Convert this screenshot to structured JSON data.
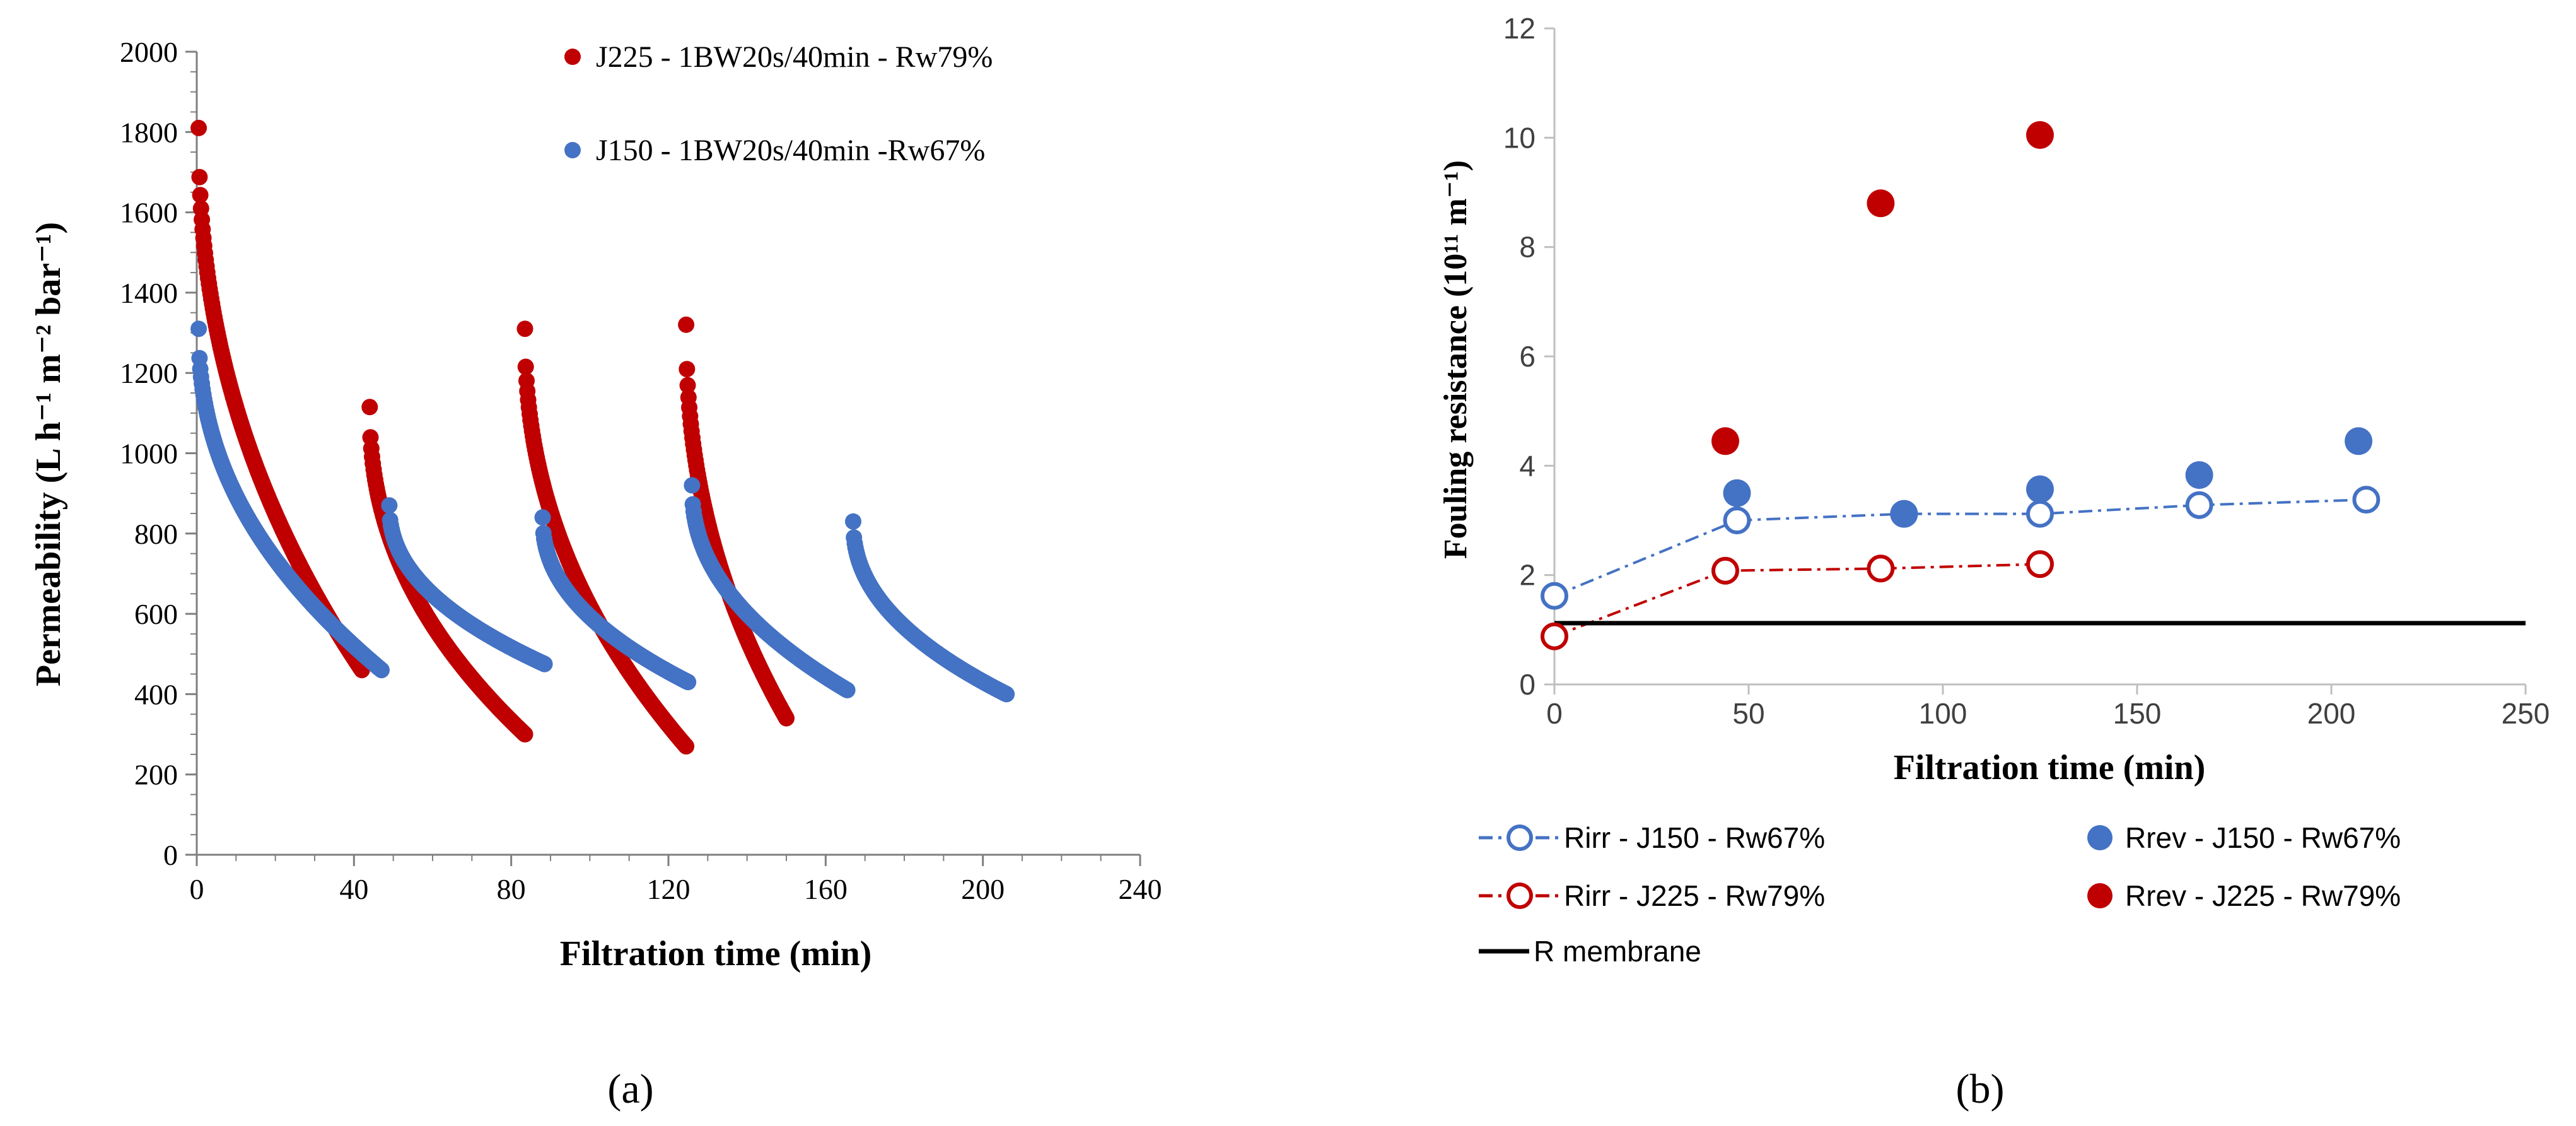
{
  "chart_data": [
    {
      "panel_label": "(a)",
      "type": "scatter",
      "title": "",
      "xlabel": "Filtration time (min)",
      "ylabel": "Permeability (L h⁻¹ m⁻² bar⁻¹)",
      "xlim": [
        0,
        240
      ],
      "ylim": [
        0,
        2000
      ],
      "xticks": [
        0,
        40,
        80,
        120,
        160,
        200,
        240
      ],
      "yticks": [
        0,
        200,
        400,
        600,
        800,
        1000,
        1200,
        1400,
        1600,
        1800,
        2000
      ],
      "grid": false,
      "legend_position": "top-right",
      "series": [
        {
          "name": "J225 - 1BW20s/40min - Rw79%",
          "color": "#c00000",
          "cycles": [
            {
              "x_start": 0.5,
              "x_end": 42,
              "y_start": 1810,
              "y_end": 460
            },
            {
              "x_start": 44,
              "x_end": 83.5,
              "y_start": 1115,
              "y_end": 300
            },
            {
              "x_start": 83.5,
              "x_end": 124.5,
              "y_start": 1310,
              "y_end": 270
            },
            {
              "x_start": 124.5,
              "x_end": 150,
              "y_start": 1320,
              "y_end": 340
            }
          ]
        },
        {
          "name": "J150 - 1BW20s/40min -Rw67%",
          "color": "#4472c4",
          "cycles": [
            {
              "x_start": 0.5,
              "x_end": 47,
              "y_start": 1310,
              "y_end": 460
            },
            {
              "x_start": 49,
              "x_end": 88.5,
              "y_start": 870,
              "y_end": 475
            },
            {
              "x_start": 88,
              "x_end": 125,
              "y_start": 840,
              "y_end": 430
            },
            {
              "x_start": 126,
              "x_end": 165.5,
              "y_start": 920,
              "y_end": 410
            },
            {
              "x_start": 167,
              "x_end": 206,
              "y_start": 830,
              "y_end": 400
            }
          ]
        }
      ]
    },
    {
      "panel_label": "(b)",
      "type": "scatter",
      "title": "",
      "xlabel": "Filtration time (min)",
      "ylabel": "Fouling resistance (10¹¹ m⁻¹)",
      "xlim": [
        0,
        250
      ],
      "ylim": [
        0,
        12
      ],
      "xticks": [
        0,
        50,
        100,
        150,
        200,
        250
      ],
      "yticks": [
        0,
        2,
        4,
        6,
        8,
        10,
        12
      ],
      "grid": false,
      "legend_position": "bottom",
      "series": [
        {
          "name": "Rirr - J150 - Rw67%",
          "color": "#4472c4",
          "marker": "open-circle",
          "line": "dash-dot",
          "x": [
            0,
            47,
            90,
            125,
            166,
            209
          ],
          "y": [
            1.62,
            3.0,
            3.12,
            3.12,
            3.28,
            3.38
          ]
        },
        {
          "name": "Rev - J150 - Rw67%",
          "color": "#4472c4",
          "marker": "filled-circle",
          "line": "none",
          "x": [
            47,
            90,
            125,
            166,
            207
          ],
          "y": [
            3.5,
            3.12,
            3.57,
            3.83,
            4.45
          ]
        },
        {
          "name": "Rirr - J225 - Rw79%",
          "color": "#c00000",
          "marker": "open-circle",
          "line": "dash-dot",
          "x": [
            0,
            44,
            84,
            125
          ],
          "y": [
            0.88,
            2.08,
            2.12,
            2.2
          ]
        },
        {
          "name": "Rrev - J225 - Rw79%",
          "color": "#c00000",
          "marker": "filled-circle",
          "line": "none",
          "x": [
            44,
            84,
            125
          ],
          "y": [
            4.45,
            8.8,
            10.05
          ]
        },
        {
          "name": "R membrane",
          "color": "#000000",
          "marker": "none",
          "line": "solid",
          "x": [
            0,
            250
          ],
          "y": [
            1.12,
            1.12
          ]
        }
      ],
      "legend_display_names": [
        "Rirr - J150 - Rw67%",
        "Rrev - J150 - Rw67%",
        "Rirr - J225 - Rw79%",
        "Rrev - J225 - Rw79%",
        "R membrane"
      ]
    }
  ]
}
